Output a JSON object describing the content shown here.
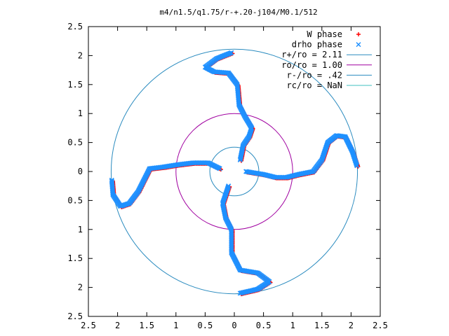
{
  "chart_data": {
    "type": "scatter",
    "title": "m4/n1.5/q1.75/r-+.20-j104/M0.1/512",
    "xlabel": "",
    "ylabel": "",
    "xlim": [
      -2.5,
      2.5
    ],
    "ylim": [
      -2.5,
      2.5
    ],
    "x_tick_values": [
      -2.5,
      -2,
      -1.5,
      -1,
      -0.5,
      0,
      0.5,
      1,
      1.5,
      2,
      2.5
    ],
    "x_tick_labels": [
      "2.5",
      "2",
      "1.5",
      "1",
      "0.5",
      "0",
      "0.5",
      "1",
      "1.5",
      "2",
      "2.5"
    ],
    "y_tick_values": [
      2.5,
      2,
      1.5,
      1,
      0.5,
      0,
      -0.5,
      -1,
      -1.5,
      -2,
      -2.5
    ],
    "y_tick_labels": [
      "2.5",
      "2",
      "1.5",
      "1",
      "0.5",
      "0",
      "0.5",
      "1",
      "1.5",
      "2",
      "2.5"
    ],
    "grid": false,
    "legend_position": "top-right",
    "series": [
      {
        "name": "W phase",
        "marker": "plus",
        "color": "#ff0000",
        "arms": [
          [
            [
              0.1,
              0.2
            ],
            [
              0.15,
              0.45
            ],
            [
              0.25,
              0.6
            ],
            [
              0.3,
              0.75
            ],
            [
              0.18,
              0.95
            ],
            [
              0.08,
              1.15
            ],
            [
              0.05,
              1.5
            ],
            [
              -0.1,
              1.7
            ],
            [
              -0.35,
              1.72
            ],
            [
              -0.5,
              1.8
            ],
            [
              -0.3,
              1.95
            ],
            [
              -0.05,
              2.05
            ]
          ],
          [
            [
              0.2,
              0.0
            ],
            [
              0.5,
              -0.05
            ],
            [
              0.7,
              -0.1
            ],
            [
              0.9,
              -0.1
            ],
            [
              1.1,
              -0.05
            ],
            [
              1.35,
              0.0
            ],
            [
              1.5,
              0.2
            ],
            [
              1.6,
              0.5
            ],
            [
              1.75,
              0.62
            ],
            [
              1.9,
              0.6
            ],
            [
              2.02,
              0.35
            ],
            [
              2.1,
              0.1
            ]
          ],
          [
            [
              -0.1,
              -0.25
            ],
            [
              -0.2,
              -0.55
            ],
            [
              -0.15,
              -0.8
            ],
            [
              -0.05,
              -1.0
            ],
            [
              -0.05,
              -1.4
            ],
            [
              0.1,
              -1.7
            ],
            [
              0.4,
              -1.75
            ],
            [
              0.6,
              -1.9
            ],
            [
              0.4,
              -2.03
            ],
            [
              0.1,
              -2.1
            ]
          ],
          [
            [
              -0.25,
              0.05
            ],
            [
              -0.45,
              0.15
            ],
            [
              -0.7,
              0.15
            ],
            [
              -0.95,
              0.12
            ],
            [
              -1.2,
              0.08
            ],
            [
              -1.45,
              0.05
            ],
            [
              -1.55,
              -0.15
            ],
            [
              -1.65,
              -0.35
            ],
            [
              -1.8,
              -0.55
            ],
            [
              -1.95,
              -0.6
            ],
            [
              -2.08,
              -0.4
            ],
            [
              -2.1,
              -0.15
            ]
          ]
        ]
      },
      {
        "name": "drho phase",
        "marker": "cross",
        "color": "#1e90ff",
        "arms": [
          [
            [
              0.1,
              0.2
            ],
            [
              0.15,
              0.45
            ],
            [
              0.25,
              0.6
            ],
            [
              0.3,
              0.75
            ],
            [
              0.18,
              0.95
            ],
            [
              0.08,
              1.15
            ],
            [
              0.05,
              1.5
            ],
            [
              -0.1,
              1.7
            ],
            [
              -0.35,
              1.72
            ],
            [
              -0.5,
              1.8
            ],
            [
              -0.3,
              1.95
            ],
            [
              -0.05,
              2.05
            ]
          ],
          [
            [
              0.2,
              0.0
            ],
            [
              0.5,
              -0.05
            ],
            [
              0.7,
              -0.1
            ],
            [
              0.9,
              -0.1
            ],
            [
              1.1,
              -0.05
            ],
            [
              1.35,
              0.0
            ],
            [
              1.5,
              0.2
            ],
            [
              1.6,
              0.5
            ],
            [
              1.75,
              0.62
            ],
            [
              1.9,
              0.6
            ],
            [
              2.02,
              0.35
            ],
            [
              2.1,
              0.1
            ]
          ],
          [
            [
              -0.1,
              -0.25
            ],
            [
              -0.2,
              -0.55
            ],
            [
              -0.15,
              -0.8
            ],
            [
              -0.05,
              -1.0
            ],
            [
              -0.05,
              -1.4
            ],
            [
              0.1,
              -1.7
            ],
            [
              0.4,
              -1.75
            ],
            [
              0.6,
              -1.9
            ],
            [
              0.4,
              -2.03
            ],
            [
              0.1,
              -2.1
            ]
          ],
          [
            [
              -0.25,
              0.05
            ],
            [
              -0.45,
              0.15
            ],
            [
              -0.7,
              0.15
            ],
            [
              -0.95,
              0.12
            ],
            [
              -1.2,
              0.08
            ],
            [
              -1.45,
              0.05
            ],
            [
              -1.55,
              -0.15
            ],
            [
              -1.65,
              -0.35
            ],
            [
              -1.8,
              -0.55
            ],
            [
              -1.95,
              -0.6
            ],
            [
              -2.08,
              -0.4
            ],
            [
              -2.1,
              -0.15
            ]
          ]
        ]
      }
    ],
    "circles": [
      {
        "name": "r+/ro = 2.11",
        "radius": 2.11,
        "color": "#2a8bbf"
      },
      {
        "name": "ro/ro = 1.00",
        "radius": 1.0,
        "color": "#a000a0"
      },
      {
        "name": "r-/ro = .42",
        "radius": 0.42,
        "color": "#2a8bbf"
      },
      {
        "name": "rc/ro = NaN",
        "radius": null,
        "color": "#40c0c0"
      }
    ]
  }
}
